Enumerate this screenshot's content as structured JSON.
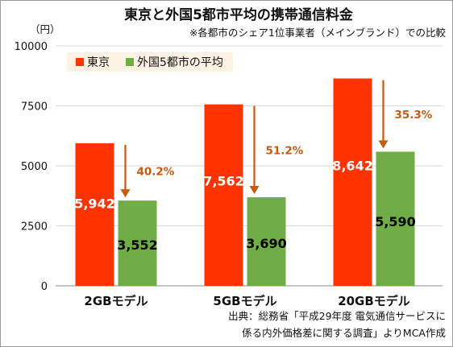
{
  "chart_data": {
    "type": "bar",
    "title": "東京と外国5都市平均の携帯通信料金",
    "subtitle": "※各都市のシェア1位事業者（メインブランド）での比較",
    "unit_label": "（円）",
    "categories": [
      "2GBモデル",
      "5GBモデル",
      "20GBモデル"
    ],
    "series": [
      {
        "name": "東京",
        "color": "#ff3300",
        "values": [
          5942,
          7562,
          8642
        ],
        "labels": [
          "5,942",
          "7,562",
          "8,642"
        ],
        "label_color": "#ffffff"
      },
      {
        "name": "外国5都市の平均",
        "color": "#70ad47",
        "values": [
          3552,
          3690,
          5590
        ],
        "labels": [
          "3,552",
          "3,690",
          "5,590"
        ],
        "label_color": "#000000"
      }
    ],
    "differences": [
      "40.2%",
      "51.2%",
      "35.3%"
    ],
    "difference_color": "#c55a11",
    "ylim": [
      0,
      10000
    ],
    "yticks": [
      0,
      2500,
      5000,
      7500,
      10000
    ],
    "ytick_labels": [
      "0",
      "2500",
      "5000",
      "7500",
      "10000"
    ],
    "grid": true,
    "legend_position": "top-left",
    "source_lines": [
      "出典：総務省「平成29年度 電気通信サービスに",
      "係る内外価格差に関する調査」よりMCA作成"
    ]
  }
}
